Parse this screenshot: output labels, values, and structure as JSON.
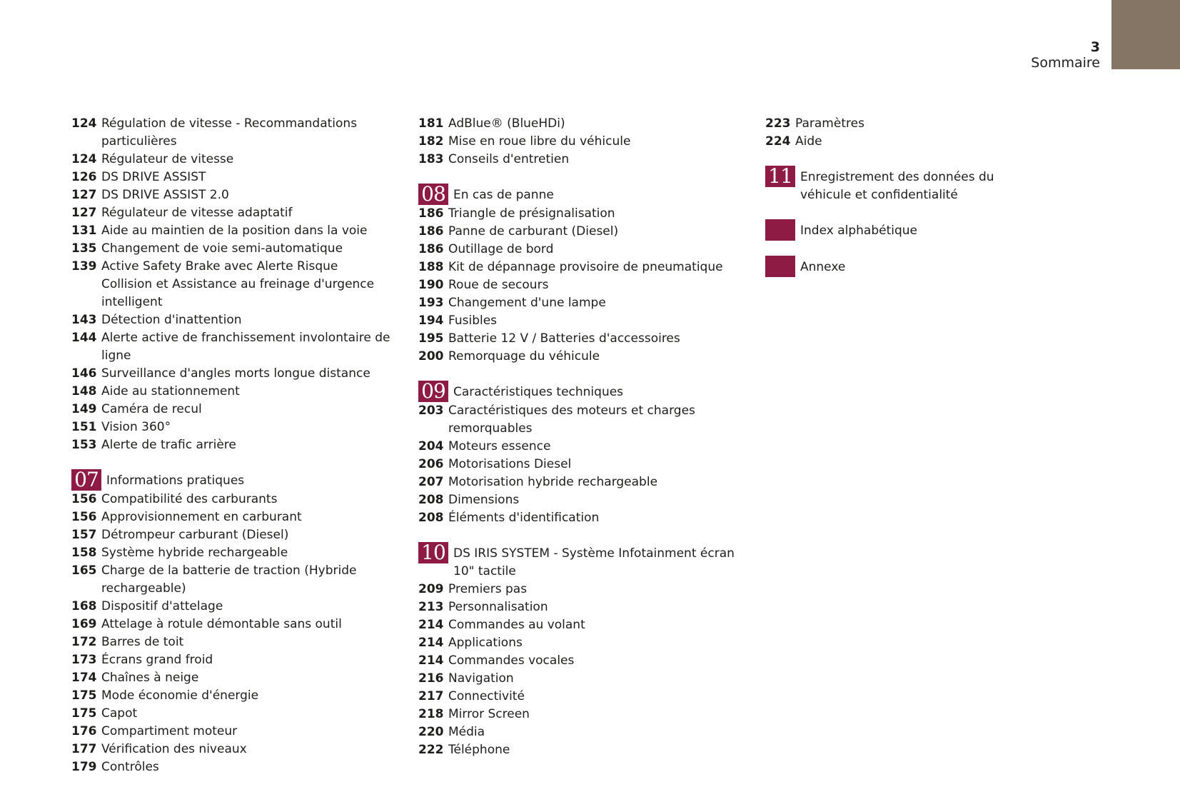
{
  "header": {
    "page_number": "3",
    "title": "Sommaire",
    "tab_color": "#857564"
  },
  "accent_color": "#8e1b43",
  "columns": [
    [
      {
        "num": "124",
        "text": "Régulation de vitesse - Recommandations particulières"
      },
      {
        "num": "124",
        "text": "Régulateur de vitesse"
      },
      {
        "num": "126",
        "text": "DS DRIVE ASSIST"
      },
      {
        "num": "127",
        "text": "DS DRIVE ASSIST 2.0"
      },
      {
        "num": "127",
        "text": "Régulateur de vitesse adaptatif"
      },
      {
        "num": "131",
        "text": "Aide au maintien de la position dans la voie"
      },
      {
        "num": "135",
        "text": "Changement de voie semi-automatique"
      },
      {
        "num": "139",
        "text": "Active Safety Brake avec Alerte Risque Collision et Assistance au freinage d'urgence intelligent"
      },
      {
        "num": "143",
        "text": "Détection d'inattention"
      },
      {
        "num": "144",
        "text": "Alerte active de franchissement involontaire de ligne"
      },
      {
        "num": "146",
        "text": "Surveillance d'angles morts longue distance"
      },
      {
        "num": "148",
        "text": "Aide au stationnement"
      },
      {
        "num": "149",
        "text": "Caméra de recul"
      },
      {
        "num": "151",
        "text": "Vision 360°"
      },
      {
        "num": "153",
        "text": "Alerte de trafic arrière"
      },
      {
        "section": "07",
        "text": "Informations pratiques"
      },
      {
        "num": "156",
        "text": "Compatibilité des carburants"
      },
      {
        "num": "156",
        "text": "Approvisionnement en carburant"
      },
      {
        "num": "157",
        "text": "Détrompeur carburant (Diesel)"
      },
      {
        "num": "158",
        "text": "Système hybride rechargeable"
      },
      {
        "num": "165",
        "text": "Charge de la batterie de traction (Hybride rechargeable)"
      },
      {
        "num": "168",
        "text": "Dispositif d'attelage"
      },
      {
        "num": "169",
        "text": "Attelage à rotule démontable sans outil"
      },
      {
        "num": "172",
        "text": "Barres de toit"
      },
      {
        "num": "173",
        "text": "Écrans grand froid"
      },
      {
        "num": "174",
        "text": "Chaînes à neige"
      },
      {
        "num": "175",
        "text": "Mode économie d'énergie"
      },
      {
        "num": "175",
        "text": "Capot"
      },
      {
        "num": "176",
        "text": "Compartiment moteur"
      },
      {
        "num": "177",
        "text": "Vérification des niveaux"
      },
      {
        "num": "179",
        "text": "Contrôles"
      }
    ],
    [
      {
        "num": "181",
        "text": "AdBlue® (BlueHDi)"
      },
      {
        "num": "182",
        "text": "Mise en roue libre du véhicule"
      },
      {
        "num": "183",
        "text": "Conseils d'entretien"
      },
      {
        "section": "08",
        "text": "En cas de panne"
      },
      {
        "num": "186",
        "text": "Triangle de présignalisation"
      },
      {
        "num": "186",
        "text": "Panne de carburant (Diesel)"
      },
      {
        "num": "186",
        "text": "Outillage de bord"
      },
      {
        "num": "188",
        "text": "Kit de dépannage provisoire de pneumatique"
      },
      {
        "num": "190",
        "text": "Roue de secours"
      },
      {
        "num": "193",
        "text": "Changement d'une lampe"
      },
      {
        "num": "194",
        "text": "Fusibles"
      },
      {
        "num": "195",
        "text": "Batterie 12 V / Batteries d'accessoires"
      },
      {
        "num": "200",
        "text": "Remorquage du véhicule"
      },
      {
        "section": "09",
        "text": "Caractéristiques techniques"
      },
      {
        "num": "203",
        "text": "Caractéristiques des moteurs et charges remorquables"
      },
      {
        "num": "204",
        "text": "Moteurs essence"
      },
      {
        "num": "206",
        "text": "Motorisations Diesel"
      },
      {
        "num": "207",
        "text": "Motorisation hybride rechargeable"
      },
      {
        "num": "208",
        "text": "Dimensions"
      },
      {
        "num": "208",
        "text": "Éléments d'identification"
      },
      {
        "section": "10",
        "text": "DS IRIS SYSTEM - Système Infotainment écran 10\" tactile"
      },
      {
        "num": "209",
        "text": "Premiers pas"
      },
      {
        "num": "213",
        "text": "Personnalisation"
      },
      {
        "num": "214",
        "text": "Commandes au volant"
      },
      {
        "num": "214",
        "text": "Applications"
      },
      {
        "num": "214",
        "text": "Commandes vocales"
      },
      {
        "num": "216",
        "text": "Navigation"
      },
      {
        "num": "217",
        "text": "Connectivité"
      },
      {
        "num": "218",
        "text": "Mirror Screen"
      },
      {
        "num": "220",
        "text": "Média"
      },
      {
        "num": "222",
        "text": "Téléphone"
      }
    ],
    [
      {
        "num": "223",
        "text": "Paramètres"
      },
      {
        "num": "224",
        "text": "Aide"
      },
      {
        "section": "11",
        "text": "Enregistrement des données du véhicule et confidentialité"
      },
      {
        "section": "",
        "text": "Index alphabétique"
      },
      {
        "section": "",
        "text": "Annexe"
      }
    ]
  ]
}
